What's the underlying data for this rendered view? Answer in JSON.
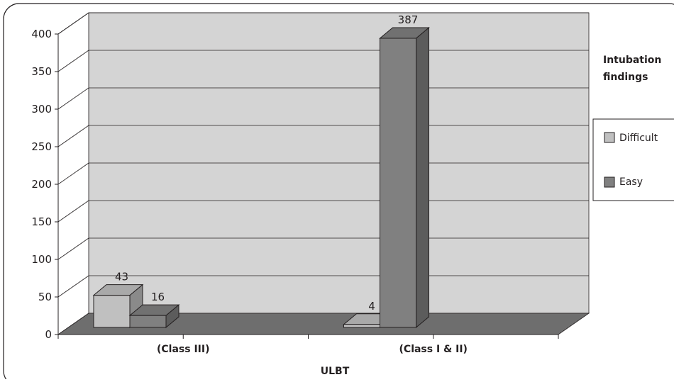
{
  "chart_data": {
    "type": "bar",
    "categories": [
      "(Class III)",
      "(Class I & II)"
    ],
    "series": [
      {
        "name": "Difficult",
        "values": [
          43,
          4
        ],
        "color": "#c0c0c0"
      },
      {
        "name": "Easy",
        "values": [
          16,
          387
        ],
        "color": "#808080"
      }
    ],
    "xlabel": "ULBT",
    "ylabel": "",
    "ylim": [
      0,
      400
    ],
    "yticks": [
      0,
      50,
      100,
      150,
      200,
      250,
      300,
      350,
      400
    ],
    "grid": true,
    "legend": {
      "title": "Intubation findings",
      "title_lines": [
        "Intubation",
        "findings"
      ],
      "position": "right"
    },
    "wall_color": "#d4d4d4",
    "floor_color": "#6e6e6e"
  }
}
